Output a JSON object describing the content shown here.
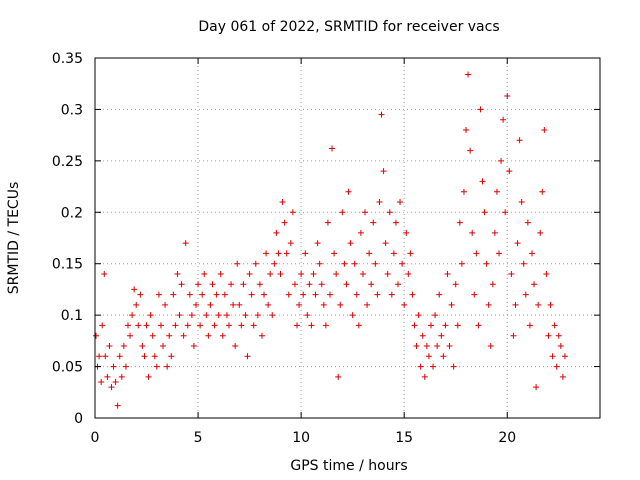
{
  "chart_data": {
    "type": "scatter",
    "title": "Day 061 of 2022, SRMTID for receiver vacs",
    "xlabel": "GPS time / hours",
    "ylabel": "SRMTID / TECUs",
    "xlim": [
      0,
      24.5
    ],
    "ylim": [
      0,
      0.35
    ],
    "x_ticks": [
      0,
      5,
      10,
      15,
      20
    ],
    "x_tick_labels": [
      "0",
      "5",
      "10",
      "15",
      "20"
    ],
    "y_ticks": [
      0,
      0.05,
      0.1,
      0.15,
      0.2,
      0.25,
      0.3,
      0.35
    ],
    "y_tick_labels": [
      "0",
      "0.05",
      "0.1",
      "0.15",
      "0.2",
      "0.25",
      "0.3",
      "0.35"
    ],
    "grid": true,
    "marker": "+",
    "series": [
      {
        "name": "SRMTID",
        "color": "#e00000",
        "points": [
          [
            0.05,
            0.08
          ],
          [
            0.12,
            0.05
          ],
          [
            0.2,
            0.06
          ],
          [
            0.3,
            0.035
          ],
          [
            0.35,
            0.09
          ],
          [
            0.45,
            0.14
          ],
          [
            0.5,
            0.06
          ],
          [
            0.6,
            0.04
          ],
          [
            0.7,
            0.07
          ],
          [
            0.8,
            0.03
          ],
          [
            0.9,
            0.05
          ],
          [
            1.0,
            0.035
          ],
          [
            1.1,
            0.012
          ],
          [
            1.2,
            0.06
          ],
          [
            1.3,
            0.04
          ],
          [
            1.4,
            0.07
          ],
          [
            1.5,
            0.05
          ],
          [
            1.6,
            0.09
          ],
          [
            1.7,
            0.08
          ],
          [
            1.8,
            0.1
          ],
          [
            1.9,
            0.125
          ],
          [
            2.0,
            0.11
          ],
          [
            2.1,
            0.09
          ],
          [
            2.2,
            0.12
          ],
          [
            2.3,
            0.07
          ],
          [
            2.4,
            0.06
          ],
          [
            2.5,
            0.09
          ],
          [
            2.6,
            0.04
          ],
          [
            2.7,
            0.1
          ],
          [
            2.8,
            0.08
          ],
          [
            2.9,
            0.06
          ],
          [
            3.0,
            0.05
          ],
          [
            3.1,
            0.12
          ],
          [
            3.2,
            0.09
          ],
          [
            3.3,
            0.07
          ],
          [
            3.4,
            0.11
          ],
          [
            3.5,
            0.05
          ],
          [
            3.6,
            0.08
          ],
          [
            3.7,
            0.06
          ],
          [
            3.8,
            0.12
          ],
          [
            3.9,
            0.09
          ],
          [
            4.0,
            0.14
          ],
          [
            4.1,
            0.1
          ],
          [
            4.2,
            0.13
          ],
          [
            4.3,
            0.08
          ],
          [
            4.4,
            0.17
          ],
          [
            4.5,
            0.09
          ],
          [
            4.6,
            0.12
          ],
          [
            4.7,
            0.1
          ],
          [
            4.8,
            0.07
          ],
          [
            4.9,
            0.11
          ],
          [
            5.0,
            0.13
          ],
          [
            5.1,
            0.09
          ],
          [
            5.2,
            0.12
          ],
          [
            5.3,
            0.14
          ],
          [
            5.4,
            0.1
          ],
          [
            5.5,
            0.08
          ],
          [
            5.6,
            0.11
          ],
          [
            5.7,
            0.13
          ],
          [
            5.8,
            0.09
          ],
          [
            5.9,
            0.12
          ],
          [
            6.0,
            0.1
          ],
          [
            6.1,
            0.14
          ],
          [
            6.2,
            0.08
          ],
          [
            6.3,
            0.12
          ],
          [
            6.4,
            0.1
          ],
          [
            6.5,
            0.09
          ],
          [
            6.6,
            0.13
          ],
          [
            6.7,
            0.11
          ],
          [
            6.8,
            0.07
          ],
          [
            6.9,
            0.15
          ],
          [
            7.0,
            0.11
          ],
          [
            7.1,
            0.09
          ],
          [
            7.2,
            0.13
          ],
          [
            7.3,
            0.1
          ],
          [
            7.4,
            0.06
          ],
          [
            7.5,
            0.14
          ],
          [
            7.6,
            0.12
          ],
          [
            7.7,
            0.09
          ],
          [
            7.8,
            0.15
          ],
          [
            7.9,
            0.1
          ],
          [
            8.0,
            0.13
          ],
          [
            8.1,
            0.08
          ],
          [
            8.2,
            0.12
          ],
          [
            8.3,
            0.16
          ],
          [
            8.4,
            0.11
          ],
          [
            8.5,
            0.14
          ],
          [
            8.6,
            0.1
          ],
          [
            8.7,
            0.15
          ],
          [
            8.8,
            0.18
          ],
          [
            8.9,
            0.16
          ],
          [
            9.0,
            0.14
          ],
          [
            9.1,
            0.21
          ],
          [
            9.2,
            0.19
          ],
          [
            9.3,
            0.16
          ],
          [
            9.4,
            0.12
          ],
          [
            9.5,
            0.17
          ],
          [
            9.6,
            0.2
          ],
          [
            9.7,
            0.13
          ],
          [
            9.8,
            0.09
          ],
          [
            9.9,
            0.11
          ],
          [
            10.0,
            0.14
          ],
          [
            10.1,
            0.12
          ],
          [
            10.2,
            0.16
          ],
          [
            10.3,
            0.1
          ],
          [
            10.4,
            0.13
          ],
          [
            10.5,
            0.09
          ],
          [
            10.6,
            0.14
          ],
          [
            10.7,
            0.12
          ],
          [
            10.8,
            0.17
          ],
          [
            10.9,
            0.15
          ],
          [
            11.0,
            0.13
          ],
          [
            11.1,
            0.11
          ],
          [
            11.2,
            0.09
          ],
          [
            11.3,
            0.19
          ],
          [
            11.4,
            0.12
          ],
          [
            11.5,
            0.262
          ],
          [
            11.6,
            0.16
          ],
          [
            11.7,
            0.14
          ],
          [
            11.8,
            0.04
          ],
          [
            11.9,
            0.11
          ],
          [
            12.0,
            0.2
          ],
          [
            12.1,
            0.15
          ],
          [
            12.2,
            0.13
          ],
          [
            12.3,
            0.22
          ],
          [
            12.4,
            0.17
          ],
          [
            12.5,
            0.1
          ],
          [
            12.6,
            0.15
          ],
          [
            12.7,
            0.12
          ],
          [
            12.8,
            0.09
          ],
          [
            12.9,
            0.18
          ],
          [
            13.0,
            0.14
          ],
          [
            13.1,
            0.2
          ],
          [
            13.2,
            0.11
          ],
          [
            13.3,
            0.16
          ],
          [
            13.4,
            0.13
          ],
          [
            13.5,
            0.19
          ],
          [
            13.6,
            0.15
          ],
          [
            13.7,
            0.12
          ],
          [
            13.8,
            0.21
          ],
          [
            13.9,
            0.295
          ],
          [
            14.0,
            0.24
          ],
          [
            14.1,
            0.17
          ],
          [
            14.2,
            0.14
          ],
          [
            14.3,
            0.2
          ],
          [
            14.4,
            0.12
          ],
          [
            14.5,
            0.16
          ],
          [
            14.6,
            0.19
          ],
          [
            14.7,
            0.13
          ],
          [
            14.8,
            0.21
          ],
          [
            14.9,
            0.15
          ],
          [
            15.0,
            0.11
          ],
          [
            15.1,
            0.18
          ],
          [
            15.2,
            0.14
          ],
          [
            15.3,
            0.16
          ],
          [
            15.4,
            0.12
          ],
          [
            15.5,
            0.09
          ],
          [
            15.6,
            0.07
          ],
          [
            15.7,
            0.1
          ],
          [
            15.8,
            0.05
          ],
          [
            15.9,
            0.08
          ],
          [
            16.0,
            0.04
          ],
          [
            16.1,
            0.07
          ],
          [
            16.2,
            0.06
          ],
          [
            16.3,
            0.09
          ],
          [
            16.4,
            0.05
          ],
          [
            16.5,
            0.1
          ],
          [
            16.6,
            0.07
          ],
          [
            16.7,
            0.12
          ],
          [
            16.8,
            0.08
          ],
          [
            16.9,
            0.06
          ],
          [
            17.0,
            0.09
          ],
          [
            17.1,
            0.14
          ],
          [
            17.2,
            0.07
          ],
          [
            17.3,
            0.11
          ],
          [
            17.4,
            0.05
          ],
          [
            17.5,
            0.13
          ],
          [
            17.6,
            0.09
          ],
          [
            17.7,
            0.19
          ],
          [
            17.8,
            0.15
          ],
          [
            17.9,
            0.22
          ],
          [
            18.0,
            0.28
          ],
          [
            18.1,
            0.334
          ],
          [
            18.2,
            0.26
          ],
          [
            18.3,
            0.18
          ],
          [
            18.4,
            0.12
          ],
          [
            18.5,
            0.16
          ],
          [
            18.6,
            0.09
          ],
          [
            18.7,
            0.3
          ],
          [
            18.8,
            0.23
          ],
          [
            18.9,
            0.2
          ],
          [
            19.0,
            0.15
          ],
          [
            19.1,
            0.11
          ],
          [
            19.2,
            0.07
          ],
          [
            19.3,
            0.13
          ],
          [
            19.4,
            0.18
          ],
          [
            19.5,
            0.22
          ],
          [
            19.6,
            0.16
          ],
          [
            19.7,
            0.25
          ],
          [
            19.8,
            0.29
          ],
          [
            19.9,
            0.2
          ],
          [
            20.0,
            0.313
          ],
          [
            20.1,
            0.24
          ],
          [
            20.2,
            0.14
          ],
          [
            20.3,
            0.08
          ],
          [
            20.4,
            0.11
          ],
          [
            20.5,
            0.17
          ],
          [
            20.6,
            0.27
          ],
          [
            20.7,
            0.21
          ],
          [
            20.8,
            0.15
          ],
          [
            20.9,
            0.12
          ],
          [
            21.0,
            0.19
          ],
          [
            21.1,
            0.09
          ],
          [
            21.2,
            0.16
          ],
          [
            21.3,
            0.13
          ],
          [
            21.4,
            0.03
          ],
          [
            21.5,
            0.11
          ],
          [
            21.6,
            0.18
          ],
          [
            21.7,
            0.22
          ],
          [
            21.8,
            0.28
          ],
          [
            21.9,
            0.14
          ],
          [
            22.0,
            0.08
          ],
          [
            22.1,
            0.11
          ],
          [
            22.2,
            0.06
          ],
          [
            22.3,
            0.09
          ],
          [
            22.4,
            0.05
          ],
          [
            22.5,
            0.08
          ],
          [
            22.6,
            0.07
          ],
          [
            22.7,
            0.04
          ],
          [
            22.8,
            0.06
          ]
        ]
      }
    ]
  }
}
